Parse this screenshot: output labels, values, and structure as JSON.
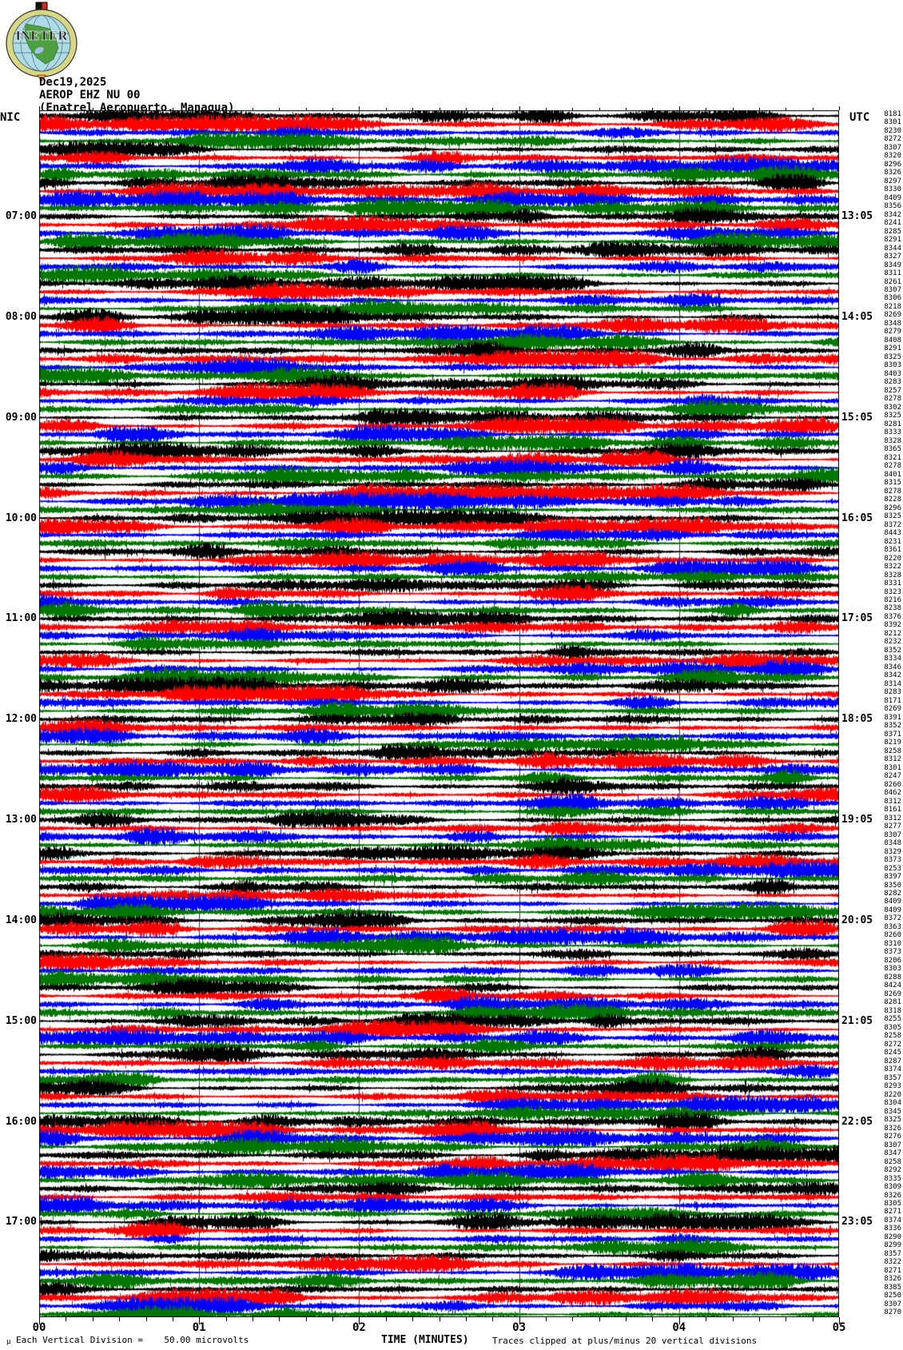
{
  "logo": {
    "text": "INETER"
  },
  "header": {
    "date": "Dec19,2025",
    "station": "AEROP EHZ NU 00",
    "location": "(Enatrel Aeropuerto, Managua)"
  },
  "axes": {
    "left_header": "NIC",
    "right_header": "UTC"
  },
  "footer": {
    "micro_symbol": "μ",
    "division_note": "Each Vertical Division =    50.00 microvolts",
    "time_axis_title": "TIME (MINUTES)",
    "clip_note": "Traces clipped at plus/minus 20 vertical divisions"
  },
  "chart_data": {
    "type": "line",
    "subtype": "helicorder-seismogram",
    "title": "AEROP EHZ NU 00",
    "date": "Dec19,2025",
    "location": "(Enatrel Aeropuerto, Managua)",
    "xlabel": "TIME (MINUTES)",
    "x_tick_labels": [
      "00",
      "01",
      "02",
      "03",
      "04",
      "05"
    ],
    "xlim": [
      0,
      5
    ],
    "minor_ticks_per_minute": 6,
    "minutes_per_line": 5,
    "lines_per_hour": 12,
    "num_lines": 144,
    "left_hour_labels": [
      "07:00",
      "08:00",
      "09:00",
      "10:00",
      "11:00",
      "12:00",
      "13:00",
      "14:00",
      "15:00",
      "16:00",
      "17:00"
    ],
    "right_utc_labels": [
      "13:05",
      "14:05",
      "15:05",
      "16:05",
      "17:05",
      "18:05",
      "19:05",
      "20:05",
      "21:05",
      "22:05",
      "23:05"
    ],
    "first_labeled_line_index": 12,
    "label_line_step": 12,
    "color_cycle": [
      "#000000",
      "#ff0000",
      "#0000ff",
      "#007700"
    ],
    "grid": true,
    "scale_note": "Each Vertical Division = 50.00 microvolts",
    "clip_note": "Traces clipped at plus/minus 20 vertical divisions",
    "line_mean_counts": [
      8181,
      8301,
      8230,
      8272,
      8307,
      8320,
      8296,
      8326,
      8297,
      8330,
      8409,
      8356,
      8342,
      8241,
      8285,
      8291,
      8344,
      8327,
      8349,
      8311,
      8261,
      8307,
      8306,
      8218,
      8269,
      8348,
      8279,
      8408,
      8291,
      8325,
      8303,
      8403,
      8283,
      8257,
      8278,
      8302,
      8325,
      8281,
      8333,
      8328,
      8365,
      8321,
      8278,
      8401,
      8315,
      8278,
      8228,
      8296,
      8325,
      8372,
      8443,
      8231,
      8361,
      8220,
      8322,
      8328,
      8331,
      8323,
      8216,
      8238,
      8376,
      8392,
      8212,
      8232,
      8352,
      8334,
      8346,
      8342,
      8314,
      8283,
      8171,
      8269,
      8391,
      8352,
      8371,
      8219,
      8258,
      8312,
      8301,
      8247,
      8260,
      8462,
      8312,
      8161,
      8312,
      8277,
      8307,
      8348,
      8329,
      8373,
      8253,
      8397,
      8350,
      8282,
      8409,
      8409,
      8372,
      8363,
      8260,
      8310,
      8373,
      8206,
      8303,
      8288,
      8424,
      8269,
      8281,
      8318,
      8255,
      8305,
      8258,
      8272,
      8245,
      8287,
      8374,
      8357,
      8293,
      8220,
      8304,
      8345,
      8325,
      8326,
      8276,
      8307,
      8347,
      8258,
      8292,
      8335,
      8309,
      8326,
      8305,
      8271,
      8374,
      8336,
      8290,
      8299,
      8357,
      8322,
      8271,
      8326,
      8385,
      8250,
      8307,
      8270
    ]
  }
}
